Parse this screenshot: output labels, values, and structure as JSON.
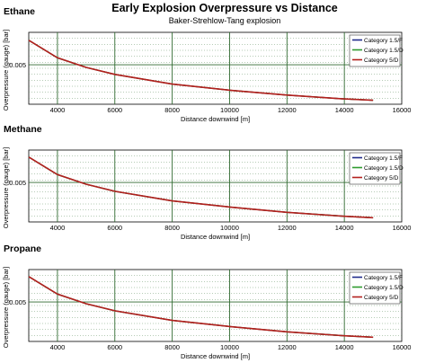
{
  "figure": {
    "title": "Early Explosion Overpressure vs Distance",
    "subtitle": "Baker-Strehlow-Tang explosion"
  },
  "colors": {
    "category_1_5_F": "#1f2a8a",
    "category_1_5_D": "#2e9a2e",
    "category_5_D": "#b3201d",
    "grid": "#2f6a2f",
    "plot_background": "#ffffff"
  },
  "chart_data": [
    {
      "type": "line",
      "panel_title": "Ethane",
      "xlabel": "Distance downwind [m]",
      "ylabel": "Overpressure (gauge) [bar]",
      "xlim": [
        3000,
        16000
      ],
      "ylim": [
        0.0005,
        0.0087
      ],
      "x_ticks": [
        "4000",
        "6000",
        "8000",
        "10000",
        "12000",
        "14000",
        "16000"
      ],
      "y_ticks": [
        "0.005"
      ],
      "grid": true,
      "legend_position": "top-right",
      "series": [
        {
          "name": "Category 1.5/F",
          "x": [
            3000,
            4000,
            5000,
            6000,
            8000,
            10000,
            12000,
            14000,
            15000
          ],
          "values": [
            0.0078,
            0.0058,
            0.0047,
            0.0039,
            0.0028,
            0.0021,
            0.00155,
            0.0011,
            0.00095
          ]
        },
        {
          "name": "Category 1.5/D",
          "x": [
            3000,
            4000,
            5000,
            6000,
            8000,
            10000,
            12000,
            14000,
            15000
          ],
          "values": [
            0.0078,
            0.0058,
            0.0047,
            0.0039,
            0.0028,
            0.0021,
            0.00155,
            0.0011,
            0.00095
          ]
        },
        {
          "name": "Category 5/D",
          "x": [
            3000,
            4000,
            5000,
            6000,
            8000,
            10000,
            12000,
            14000,
            15000
          ],
          "values": [
            0.0078,
            0.0058,
            0.0047,
            0.0039,
            0.0028,
            0.0021,
            0.00155,
            0.0011,
            0.00095
          ]
        }
      ]
    },
    {
      "type": "line",
      "panel_title": "Methane",
      "xlabel": "Distance downwind [m]",
      "ylabel": "Overpressure (gauge) [bar]",
      "xlim": [
        3000,
        16000
      ],
      "ylim": [
        0.0005,
        0.0087
      ],
      "x_ticks": [
        "4000",
        "6000",
        "8000",
        "10000",
        "12000",
        "14000",
        "16000"
      ],
      "y_ticks": [
        "0.005"
      ],
      "grid": true,
      "legend_position": "top-right",
      "series": [
        {
          "name": "Category 1.5/F",
          "x": [
            3000,
            4000,
            5000,
            6000,
            8000,
            10000,
            12000,
            14000,
            15000
          ],
          "values": [
            0.0079,
            0.0059,
            0.0048,
            0.004,
            0.0029,
            0.0022,
            0.0016,
            0.00115,
            0.00098
          ]
        },
        {
          "name": "Category 1.5/D",
          "x": [
            3000,
            4000,
            5000,
            6000,
            8000,
            10000,
            12000,
            14000,
            15000
          ],
          "values": [
            0.0079,
            0.0059,
            0.0048,
            0.004,
            0.0029,
            0.0022,
            0.0016,
            0.00115,
            0.00098
          ]
        },
        {
          "name": "Category 5/D",
          "x": [
            3000,
            4000,
            5000,
            6000,
            8000,
            10000,
            12000,
            14000,
            15000
          ],
          "values": [
            0.0079,
            0.0059,
            0.0048,
            0.004,
            0.0029,
            0.0022,
            0.0016,
            0.00115,
            0.00098
          ]
        }
      ]
    },
    {
      "type": "line",
      "panel_title": "Propane",
      "xlabel": "Distance downwind [m]",
      "ylabel": "Overpressure (gauge) [bar]",
      "xlim": [
        3000,
        16000
      ],
      "ylim": [
        0.0005,
        0.0087
      ],
      "x_ticks": [
        "4000",
        "6000",
        "8000",
        "10000",
        "12000",
        "14000",
        "16000"
      ],
      "y_ticks": [
        "0.005"
      ],
      "grid": true,
      "legend_position": "top-right",
      "series": [
        {
          "name": "Category 1.5/F",
          "x": [
            3000,
            4000,
            5000,
            6000,
            8000,
            10000,
            12000,
            14000,
            15000
          ],
          "values": [
            0.0079,
            0.0059,
            0.0048,
            0.004,
            0.0029,
            0.0022,
            0.0016,
            0.00115,
            0.00098
          ]
        },
        {
          "name": "Category 1.5/D",
          "x": [
            3000,
            4000,
            5000,
            6000,
            8000,
            10000,
            12000,
            14000,
            15000
          ],
          "values": [
            0.0079,
            0.0059,
            0.0048,
            0.004,
            0.0029,
            0.0022,
            0.0016,
            0.00115,
            0.00098
          ]
        },
        {
          "name": "Category 5/D",
          "x": [
            3000,
            4000,
            5000,
            6000,
            8000,
            10000,
            12000,
            14000,
            15000
          ],
          "values": [
            0.0079,
            0.0059,
            0.0048,
            0.004,
            0.0029,
            0.0022,
            0.0016,
            0.00115,
            0.00098
          ]
        }
      ]
    }
  ]
}
